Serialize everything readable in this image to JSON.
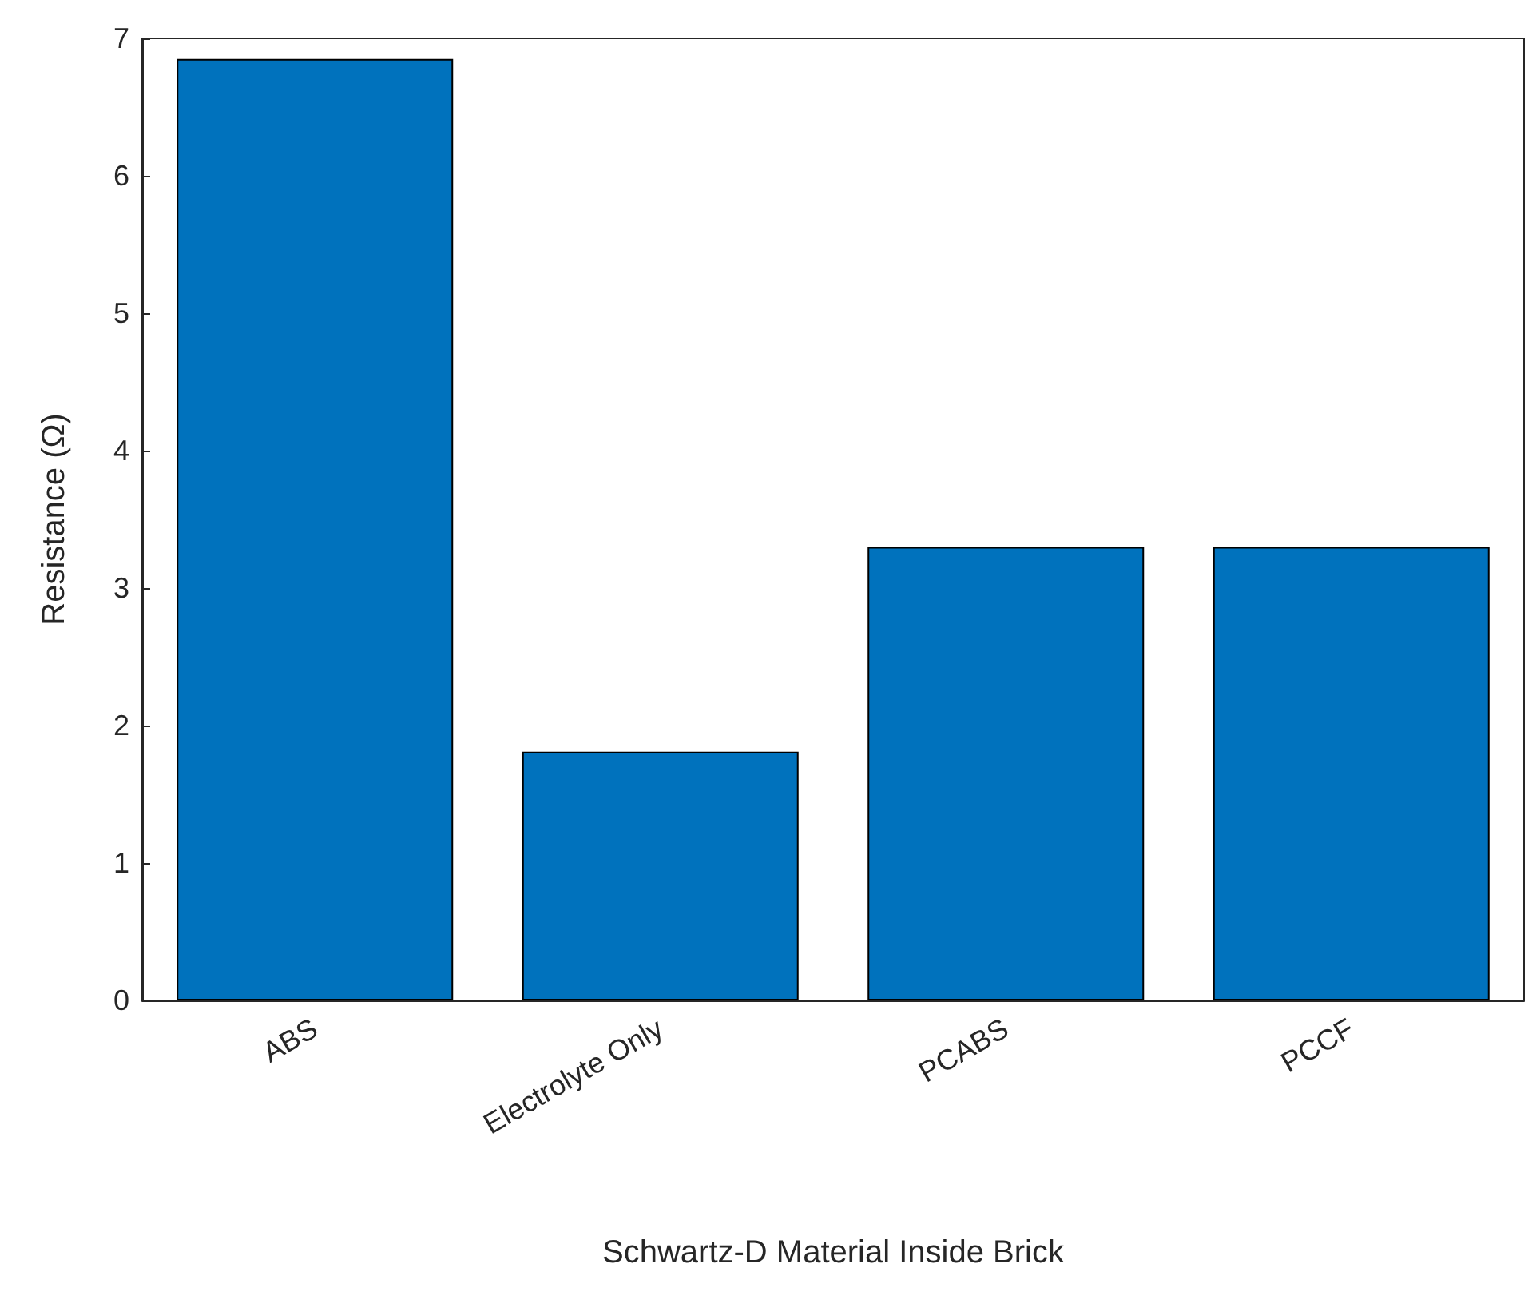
{
  "chart_data": {
    "type": "bar",
    "xlabel": "Schwartz-D Material Inside Brick",
    "ylabel": "Resistance (Ω)",
    "categories": [
      "ABS",
      "Electrolyte Only",
      "PCABS",
      "PCCF"
    ],
    "values": [
      6.85,
      1.81,
      3.3,
      3.3
    ],
    "color": "#0072bd",
    "ylim": [
      0,
      7
    ],
    "yticks": [
      0,
      1,
      2,
      3,
      4,
      5,
      6,
      7
    ],
    "grid": false
  }
}
